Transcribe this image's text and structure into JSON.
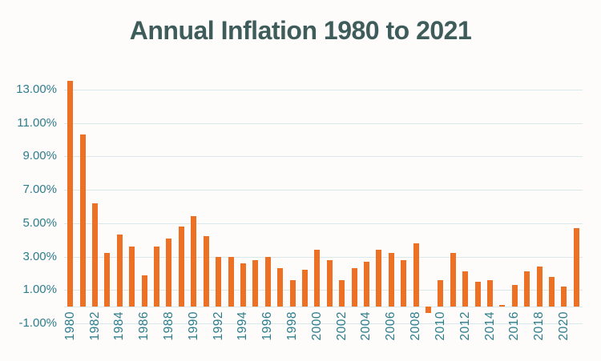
{
  "chart_data": {
    "type": "bar",
    "title": "Annual Inflation 1980 to 2021",
    "categories": [
      "1980",
      "1981",
      "1982",
      "1983",
      "1984",
      "1985",
      "1986",
      "1987",
      "1988",
      "1989",
      "1990",
      "1991",
      "1992",
      "1993",
      "1994",
      "1995",
      "1996",
      "1997",
      "1998",
      "1999",
      "2000",
      "2001",
      "2002",
      "2003",
      "2004",
      "2005",
      "2006",
      "2007",
      "2008",
      "2009",
      "2010",
      "2011",
      "2012",
      "2013",
      "2014",
      "2015",
      "2016",
      "2017",
      "2018",
      "2019",
      "2020",
      "2021"
    ],
    "values": [
      13.5,
      10.3,
      6.2,
      3.2,
      4.3,
      3.6,
      1.9,
      3.6,
      4.1,
      4.8,
      5.4,
      4.2,
      3.0,
      3.0,
      2.6,
      2.8,
      3.0,
      2.3,
      1.6,
      2.2,
      3.4,
      2.8,
      1.6,
      2.3,
      2.7,
      3.4,
      3.2,
      2.8,
      3.8,
      -0.4,
      1.6,
      3.2,
      2.1,
      1.5,
      1.6,
      0.1,
      1.3,
      2.1,
      2.4,
      1.8,
      1.2,
      4.7
    ],
    "value_unit": "%",
    "xlabel": "",
    "ylabel": "",
    "ylim": [
      -1,
      13.8
    ],
    "y_tick_values": [
      13,
      11,
      9,
      7,
      5,
      3,
      1,
      -1
    ],
    "y_tick_labels": [
      "13.00%",
      "11.00%",
      "9.00%",
      "7.00%",
      "5.00%",
      "3.00%",
      "1.00%",
      "-1.00%"
    ],
    "x_tick_labels": [
      "1980",
      "1982",
      "1984",
      "1986",
      "1988",
      "1990",
      "1992",
      "1994",
      "1996",
      "1998",
      "2000",
      "2002",
      "2004",
      "2006",
      "2008",
      "2010",
      "2012",
      "2014",
      "2016",
      "2018",
      "2020"
    ],
    "grid": true,
    "legend": "none",
    "colors": {
      "bar": "#ED7124",
      "title_text": "#3D5C5A",
      "axis_text": "#2E7D8C",
      "gridline": "#D9E9EB",
      "background": "#FDFCFB"
    }
  }
}
